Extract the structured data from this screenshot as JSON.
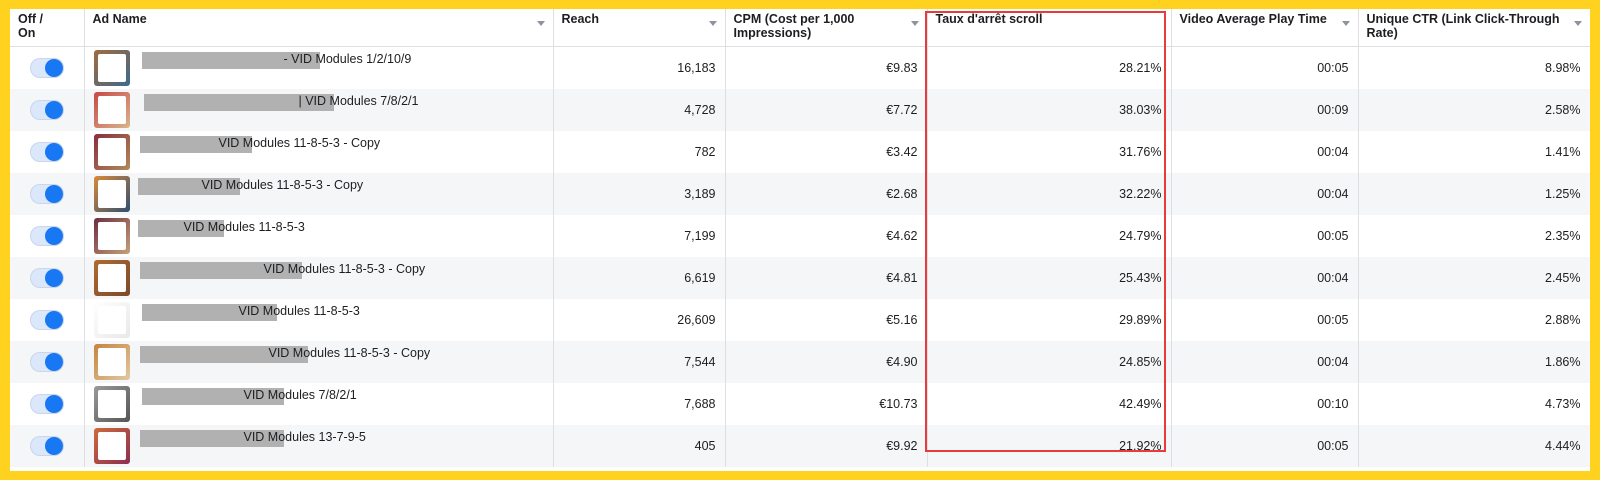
{
  "headers": {
    "toggle": "Off / On",
    "ad_name": "Ad Name",
    "reach": "Reach",
    "cpm": "CPM (Cost per 1,000 Impressions)",
    "scroll": "Taux d'arrêt scroll",
    "play_time": "Video Average Play Time",
    "ctr": "Unique CTR (Link Click-Through Rate)"
  },
  "rows": [
    {
      "name": "- VID Modules 1/2/10/9",
      "reach": "16,183",
      "cpm": "€9.83",
      "scroll": "28.21%",
      "play": "00:05",
      "ctr": "8.98%",
      "toggle_on": true
    },
    {
      "name": "| VID Modules 7/8/2/1",
      "reach": "4,728",
      "cpm": "€7.72",
      "scroll": "38.03%",
      "play": "00:09",
      "ctr": "2.58%",
      "toggle_on": true
    },
    {
      "name": "VID Modules 11-8-5-3 - Copy",
      "reach": "782",
      "cpm": "€3.42",
      "scroll": "31.76%",
      "play": "00:04",
      "ctr": "1.41%",
      "toggle_on": true
    },
    {
      "name": "VID Modules 11-8-5-3 - Copy",
      "reach": "3,189",
      "cpm": "€2.68",
      "scroll": "32.22%",
      "play": "00:04",
      "ctr": "1.25%",
      "toggle_on": true
    },
    {
      "name": "VID Modules 11-8-5-3",
      "reach": "7,199",
      "cpm": "€4.62",
      "scroll": "24.79%",
      "play": "00:05",
      "ctr": "2.35%",
      "toggle_on": true
    },
    {
      "name": "VID Modules 11-8-5-3 - Copy",
      "reach": "6,619",
      "cpm": "€4.81",
      "scroll": "25.43%",
      "play": "00:04",
      "ctr": "2.45%",
      "toggle_on": true
    },
    {
      "name": "VID Modules 11-8-5-3",
      "reach": "26,609",
      "cpm": "€5.16",
      "scroll": "29.89%",
      "play": "00:05",
      "ctr": "2.88%",
      "toggle_on": true
    },
    {
      "name": "VID Modules 11-8-5-3 - Copy",
      "reach": "7,544",
      "cpm": "€4.90",
      "scroll": "24.85%",
      "play": "00:04",
      "ctr": "1.86%",
      "toggle_on": true
    },
    {
      "name": "VID Modules 7/8/2/1",
      "reach": "7,688",
      "cpm": "€10.73",
      "scroll": "42.49%",
      "play": "00:10",
      "ctr": "4.73%",
      "toggle_on": true
    },
    {
      "name": "VID Modules 13-7-9-5",
      "reach": "405",
      "cpm": "€9.92",
      "scroll": "21.92%",
      "play": "00:05",
      "ctr": "4.44%",
      "toggle_on": true
    }
  ],
  "colors": {
    "page_border": "#ffd21f",
    "highlight": "#e83c3c",
    "toggle_accent": "#1877f2",
    "redaction": "#b1b1b1"
  }
}
